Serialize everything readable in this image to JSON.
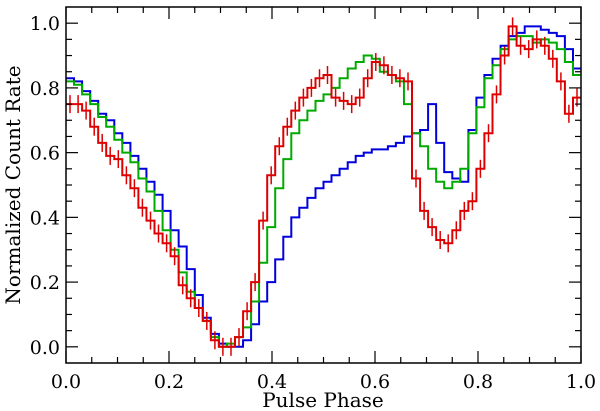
{
  "chart_data": {
    "type": "line",
    "xlabel": "Pulse Phase",
    "ylabel": "Normalized Count Rate",
    "xlim": [
      0.0,
      1.0
    ],
    "ylim": [
      -0.05,
      1.05
    ],
    "xticks": [
      0.0,
      0.2,
      0.4,
      0.6,
      0.8,
      1.0
    ],
    "xtick_labels": [
      "0.0",
      "0.2",
      "0.4",
      "0.6",
      "0.8",
      "1.0"
    ],
    "yticks": [
      0.0,
      0.2,
      0.4,
      0.6,
      0.8,
      1.0
    ],
    "ytick_labels": [
      "0.0",
      "0.2",
      "0.4",
      "0.6",
      "0.8",
      "1.0"
    ],
    "grid": false,
    "bin_width": 0.0156,
    "x": [
      0.0,
      0.0156,
      0.0313,
      0.0469,
      0.0625,
      0.0781,
      0.0938,
      0.1094,
      0.125,
      0.1406,
      0.1563,
      0.1719,
      0.1875,
      0.2031,
      0.2188,
      0.2344,
      0.25,
      0.2656,
      0.2813,
      0.2969,
      0.3125,
      0.3281,
      0.3438,
      0.3594,
      0.375,
      0.3906,
      0.4063,
      0.4219,
      0.4375,
      0.4531,
      0.4688,
      0.4844,
      0.5,
      0.5156,
      0.5313,
      0.5469,
      0.5625,
      0.5781,
      0.5938,
      0.6094,
      0.625,
      0.6406,
      0.6563,
      0.6719,
      0.6875,
      0.7031,
      0.7188,
      0.7344,
      0.75,
      0.7656,
      0.7813,
      0.7969,
      0.8125,
      0.8281,
      0.8438,
      0.8594,
      0.875,
      0.8906,
      0.9063,
      0.9219,
      0.9375,
      0.9531,
      0.9688,
      0.9844
    ],
    "series": [
      {
        "color": "#0000dd",
        "values": [
          0.83,
          0.82,
          0.79,
          0.76,
          0.72,
          0.7,
          0.66,
          0.63,
          0.59,
          0.55,
          0.51,
          0.47,
          0.42,
          0.36,
          0.31,
          0.24,
          0.16,
          0.09,
          0.04,
          0.01,
          0.0,
          0.0,
          0.02,
          0.07,
          0.14,
          0.2,
          0.27,
          0.34,
          0.4,
          0.43,
          0.46,
          0.49,
          0.51,
          0.53,
          0.55,
          0.57,
          0.59,
          0.6,
          0.61,
          0.61,
          0.62,
          0.63,
          0.65,
          0.66,
          0.67,
          0.75,
          0.63,
          0.54,
          0.52,
          0.51,
          0.67,
          0.77,
          0.84,
          0.89,
          0.93,
          0.96,
          0.97,
          0.99,
          0.99,
          0.98,
          0.97,
          0.96,
          0.92,
          0.86
        ]
      },
      {
        "color": "#00aa00",
        "values": [
          0.82,
          0.81,
          0.78,
          0.75,
          0.71,
          0.68,
          0.64,
          0.6,
          0.57,
          0.52,
          0.48,
          0.42,
          0.36,
          0.3,
          0.23,
          0.17,
          0.12,
          0.08,
          0.03,
          0.0,
          0.01,
          0.03,
          0.06,
          0.14,
          0.26,
          0.37,
          0.49,
          0.58,
          0.66,
          0.7,
          0.73,
          0.76,
          0.78,
          0.8,
          0.83,
          0.86,
          0.88,
          0.9,
          0.89,
          0.85,
          0.84,
          0.82,
          0.75,
          0.66,
          0.62,
          0.55,
          0.51,
          0.49,
          0.51,
          0.55,
          0.66,
          0.74,
          0.83,
          0.87,
          0.92,
          0.95,
          0.96,
          0.96,
          0.94,
          0.95,
          0.94,
          0.92,
          0.88,
          0.84
        ]
      },
      {
        "color": "#dd0000",
        "values": [
          0.75,
          0.75,
          0.73,
          0.68,
          0.63,
          0.59,
          0.58,
          0.53,
          0.49,
          0.43,
          0.39,
          0.35,
          0.32,
          0.28,
          0.19,
          0.15,
          0.12,
          0.08,
          0.02,
          0.0,
          0.0,
          0.03,
          0.11,
          0.2,
          0.39,
          0.53,
          0.62,
          0.68,
          0.73,
          0.77,
          0.8,
          0.83,
          0.84,
          0.77,
          0.76,
          0.75,
          0.77,
          0.83,
          0.88,
          0.87,
          0.84,
          0.83,
          0.82,
          0.52,
          0.42,
          0.37,
          0.33,
          0.32,
          0.36,
          0.42,
          0.45,
          0.55,
          0.66,
          0.78,
          0.9,
          0.99,
          0.93,
          0.92,
          0.95,
          0.93,
          0.89,
          0.82,
          0.72,
          0.77
        ]
      }
    ]
  }
}
